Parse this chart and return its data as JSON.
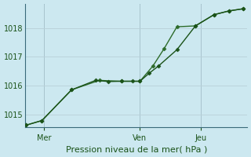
{
  "xlabel": "Pression niveau de la mer( hPa )",
  "background_color": "#cce8f0",
  "grid_color": "#b8d0d8",
  "line_color1": "#1a5218",
  "line_color2": "#2d6b2a",
  "xlim": [
    0,
    12
  ],
  "ylim": [
    1014.55,
    1018.85
  ],
  "yticks": [
    1015,
    1016,
    1017,
    1018
  ],
  "xtick_positions": [
    1.0,
    6.2,
    9.5
  ],
  "xtick_labels": [
    "Mer",
    "Ven",
    "Jeu"
  ],
  "vline_positions": [
    1.0,
    6.2,
    9.5
  ],
  "series1_x": [
    0.05,
    0.9,
    2.5,
    3.8,
    4.5,
    5.2,
    5.8,
    6.2,
    6.7,
    7.2,
    8.2,
    9.2,
    10.2,
    11.0,
    11.8
  ],
  "series1_y": [
    1014.62,
    1014.78,
    1015.85,
    1016.18,
    1016.14,
    1016.15,
    1016.15,
    1016.15,
    1016.43,
    1016.68,
    1017.25,
    1018.08,
    1018.47,
    1018.6,
    1018.68
  ],
  "series2_x": [
    0.05,
    0.9,
    2.5,
    4.0,
    5.2,
    6.2,
    6.9,
    7.5,
    8.2,
    9.2,
    10.2,
    11.0,
    11.8
  ],
  "series2_y": [
    1014.62,
    1014.78,
    1015.85,
    1016.18,
    1016.15,
    1016.15,
    1016.68,
    1017.28,
    1018.05,
    1018.08,
    1018.47,
    1018.6,
    1018.68
  ],
  "ytick_fontsize": 7,
  "xtick_fontsize": 7,
  "xlabel_fontsize": 8,
  "marker_size": 2.5,
  "linewidth": 1.0
}
